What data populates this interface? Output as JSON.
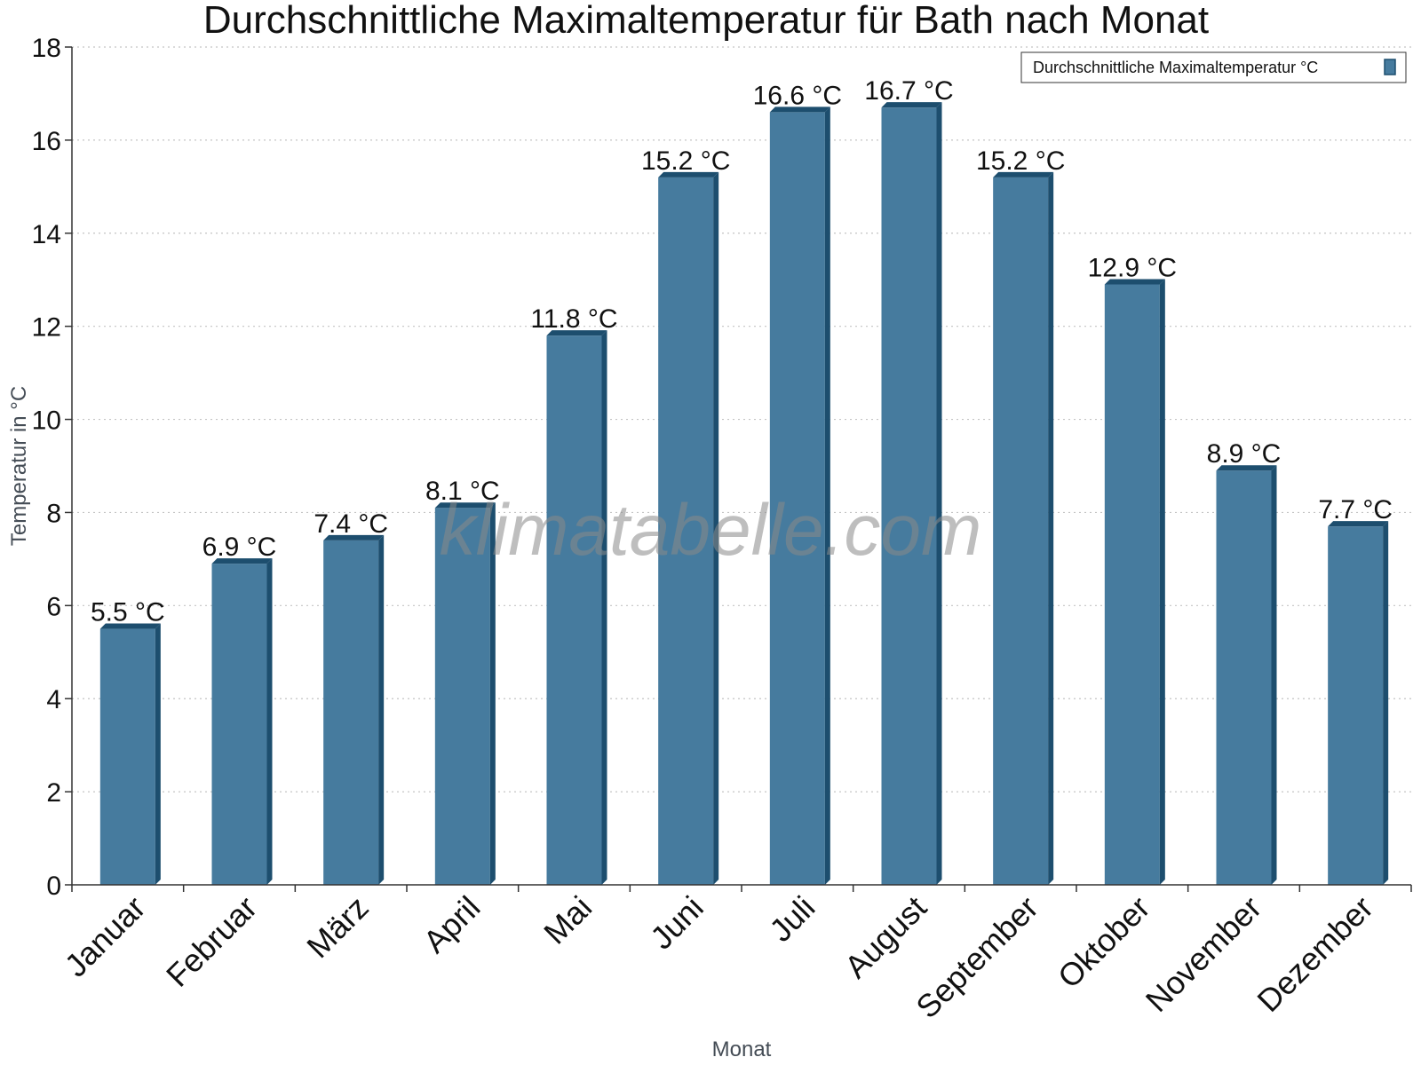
{
  "chart_data": {
    "type": "bar",
    "title": "Durchschnittliche Maximaltemperatur für Bath nach Monat",
    "xlabel": "Monat",
    "ylabel": "Temperatur in °C",
    "categories": [
      "Januar",
      "Februar",
      "März",
      "April",
      "Mai",
      "Juni",
      "Juli",
      "August",
      "September",
      "Oktober",
      "November",
      "Dezember"
    ],
    "series": [
      {
        "name": "Durchschnittliche Maximaltemperatur °C",
        "values": [
          5.5,
          6.9,
          7.4,
          8.1,
          11.8,
          15.2,
          16.6,
          16.7,
          15.2,
          12.9,
          8.9,
          7.7
        ],
        "labels": [
          "5.5 °C",
          "6.9 °C",
          "7.4 °C",
          "8.1 °C",
          "11.8 °C",
          "15.2 °C",
          "16.6 °C",
          "16.7 °C",
          "15.2 °C",
          "12.9 °C",
          "8.9 °C",
          "7.7 °C"
        ]
      }
    ],
    "ylim": [
      0,
      18
    ],
    "yticks": [
      0,
      2,
      4,
      6,
      8,
      10,
      12,
      14,
      16,
      18
    ],
    "grid": true,
    "legend_position": "top-right",
    "colors": {
      "bar": "#467b9e",
      "bar_edge": "#1d4e6e"
    }
  },
  "watermark": "klimatabelle.com"
}
